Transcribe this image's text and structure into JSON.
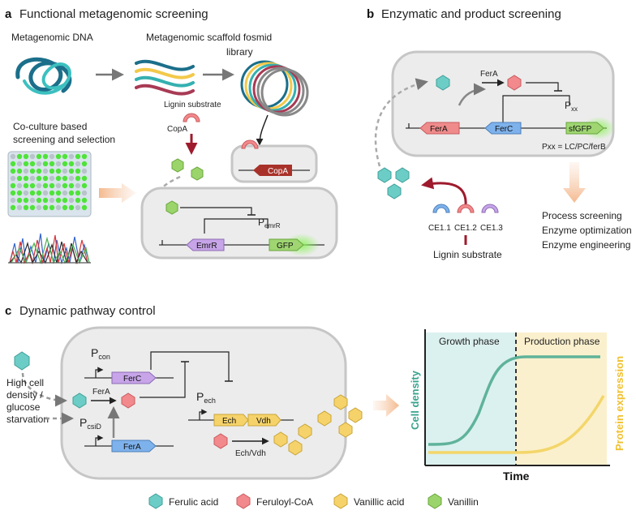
{
  "panel_a": {
    "letter": "a",
    "title": "Functional metagenomic screening",
    "metagenomic_dna": "Metagenomic DNA",
    "fosmid_library_line1": "Metagenomic scaffold fosmid",
    "fosmid_library_line2": "library",
    "lignin_substrate": "Lignin substrate",
    "copa_label": "CopA",
    "copa_gene": "CopA",
    "coculture_line1": "Co-culture based",
    "coculture_line2": "screening and selection",
    "emrr_gene": "EmrR",
    "gfp_gene": "GFP",
    "promoter_main": "P",
    "promoter_sub": "emrR"
  },
  "panel_b": {
    "letter": "b",
    "title": "Enzymatic and product screening",
    "fera_arrow": "FerA",
    "fera_gene": "FerA",
    "ferc_gene": "FerC",
    "sfgfp_gene": "sfGFP",
    "promoter_main": "P",
    "promoter_sub": "xx",
    "pxx_note": "Pxx = LC/PC/ferB",
    "ce1": "CE1.1",
    "ce2": "CE1.2",
    "ce3": "CE1.3",
    "lignin_substrate": "Lignin substrate",
    "outcome1": "Process screening",
    "outcome2": "Enzyme optimization",
    "outcome3": "Enzyme engineering"
  },
  "panel_c": {
    "letter": "c",
    "title": "Dynamic pathway control",
    "pcon_main": "P",
    "pcon_sub": "con",
    "ferc_gene": "FerC",
    "fera_arrow": "FerA",
    "pech_main": "P",
    "pech_sub": "ech",
    "ech_gene": "Ech",
    "vdh_gene": "Vdh",
    "pcsid_main": "P",
    "pcsid_sub": "csiD",
    "fera_gene": "FerA",
    "echvdh_label": "Ech/Vdh",
    "condition_line1": "High cell",
    "condition_line2": "density /",
    "condition_line3": "glucose",
    "condition_line4": "starvation"
  },
  "plot": {
    "growth_phase": "Growth phase",
    "production_phase": "Production phase",
    "y_left": "Cell density",
    "y_right": "Protein expression",
    "x_label": "Time"
  },
  "legend": {
    "items": [
      {
        "label": "Ferulic acid",
        "color": "#6ccdc6"
      },
      {
        "label": "Feruloyl-CoA",
        "color": "#f2898c"
      },
      {
        "label": "Vanillic acid",
        "color": "#f6d36a"
      },
      {
        "label": "Vanillin",
        "color": "#9ad46b"
      }
    ]
  },
  "colors": {
    "ferulic_acid": "#6ccdc6",
    "feruloyl_coa": "#f2898c",
    "vanillic_acid": "#f6d36a",
    "vanillin": "#9ad46b",
    "fera_gene": "#f08b8b",
    "ferc_gene": "#c7a5e8",
    "ferc_b_gene": "#7eb2ec",
    "gfp_gene": "#9fd672",
    "copa_gene": "#a8322a",
    "cell_density_curve": "#5fb39a",
    "protein_curve": "#f3d66a"
  }
}
